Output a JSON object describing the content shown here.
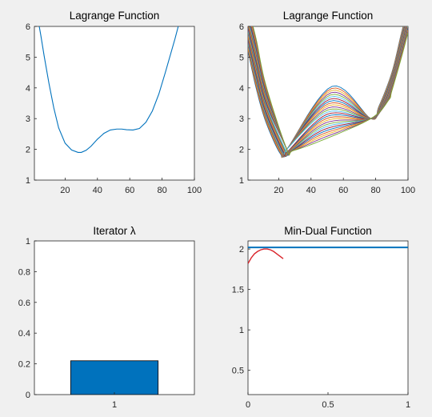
{
  "colors": {
    "figure_background": "#f0f0f0",
    "axes_background": "#ffffff",
    "axes_edge": "#262626",
    "default_line": "#0072bd",
    "bar_fill": "#0072bd",
    "bar_edge": "#000000",
    "dual_curve": "#d9232a",
    "dual_level": "#0072bd"
  },
  "chart_data": [
    {
      "id": "lagrange-single",
      "type": "line",
      "title": "Lagrange Function",
      "xlim": [
        1,
        100
      ],
      "ylim": [
        1,
        6
      ],
      "xticks": [
        20,
        40,
        60,
        80,
        100
      ],
      "yticks": [
        1,
        2,
        3,
        4,
        5,
        6
      ],
      "grid": false,
      "series": [
        {
          "color": "#0072bd",
          "x": [
            4,
            5,
            7,
            10,
            13,
            16,
            20,
            24,
            28,
            30,
            33,
            36,
            40,
            44,
            48,
            52,
            55,
            58,
            62,
            66,
            70,
            74,
            78,
            82,
            85,
            88,
            90
          ],
          "y": [
            6.0,
            5.7,
            5.05,
            4.15,
            3.35,
            2.7,
            2.2,
            1.98,
            1.9,
            1.9,
            1.97,
            2.1,
            2.33,
            2.52,
            2.63,
            2.66,
            2.66,
            2.64,
            2.63,
            2.68,
            2.88,
            3.25,
            3.8,
            4.5,
            5.05,
            5.6,
            6.0
          ]
        }
      ]
    },
    {
      "id": "lagrange-family",
      "type": "line",
      "title": "Lagrange Function",
      "xlim": [
        1,
        100
      ],
      "ylim": [
        1,
        6
      ],
      "xticks": [
        20,
        40,
        60,
        80,
        100
      ],
      "yticks": [
        1,
        2,
        3,
        4,
        5,
        6
      ],
      "grid": false,
      "family": {
        "count": 26,
        "crossing_points": [
          [
            25,
            2.0
          ],
          [
            77,
            3.0
          ]
        ],
        "first_minimum": [
          21,
          1.86
        ],
        "peak_range": [
          2.3,
          4.05
        ],
        "palette": [
          "#0072bd",
          "#d95319",
          "#edb120",
          "#7e2f8e",
          "#77ac30",
          "#4dbeee",
          "#a2142f"
        ]
      }
    },
    {
      "id": "iterator",
      "type": "bar",
      "title": "Iterator λ",
      "categories": [
        "1"
      ],
      "values": [
        0.22
      ],
      "xlim": [
        0.4,
        1.6
      ],
      "ylim": [
        0,
        1
      ],
      "yticks": [
        0,
        0.2,
        0.4,
        0.6,
        0.8,
        1
      ],
      "grid": false
    },
    {
      "id": "min-dual",
      "type": "line",
      "title": "Min-Dual Function",
      "xlim": [
        0,
        1
      ],
      "ylim": [
        0.2,
        2.1
      ],
      "xticks": [
        0,
        0.5,
        1
      ],
      "xtick_labels": [
        "0",
        "0.5",
        "1"
      ],
      "yticks": [
        0.5,
        1,
        1.5,
        2
      ],
      "ytick_labels": [
        "0.5",
        "1",
        "1.5",
        "2"
      ],
      "grid": false,
      "series": [
        {
          "color": "#0072bd",
          "x": [
            0,
            1
          ],
          "y": [
            2.02,
            2.02
          ]
        },
        {
          "color": "#d9232a",
          "x": [
            0,
            0.02,
            0.04,
            0.06,
            0.08,
            0.1,
            0.12,
            0.14,
            0.16,
            0.18,
            0.2,
            0.22
          ],
          "y": [
            1.82,
            1.89,
            1.94,
            1.97,
            1.99,
            2.0,
            2.0,
            1.99,
            1.97,
            1.94,
            1.91,
            1.88
          ]
        }
      ]
    }
  ]
}
